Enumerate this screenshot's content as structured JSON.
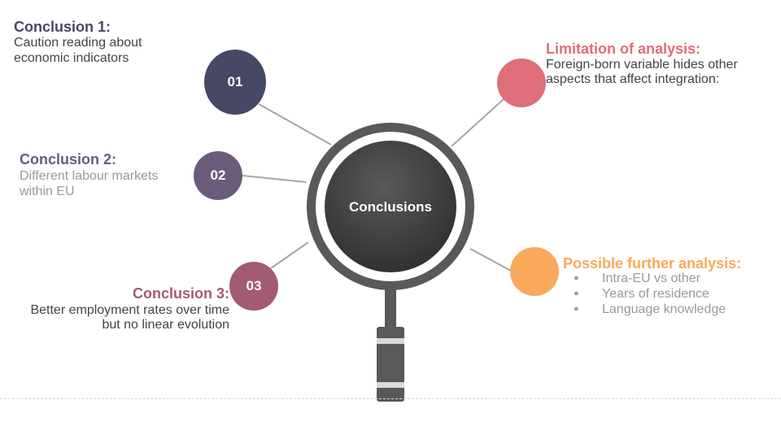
{
  "center": {
    "label": "Conclusions"
  },
  "conclusion_1": {
    "number": "01",
    "title": "Conclusion 1:",
    "body": [
      "Caution reading about",
      "economic indicators"
    ]
  },
  "conclusion_2": {
    "number": "02",
    "title": "Conclusion 2:",
    "body": [
      "Different labour markets",
      "within EU"
    ]
  },
  "conclusion_3": {
    "number": "03",
    "title": "Conclusion 3:",
    "body": [
      "Better employment rates over time",
      "but no linear evolution"
    ]
  },
  "limitation": {
    "title": "Limitation of analysis:",
    "body": [
      "Foreign-born variable hides other",
      "aspects that affect integration:"
    ]
  },
  "further_analysis": {
    "title": "Possible further analysis:",
    "items": [
      "Intra-EU vs other",
      "Years of residence",
      "Language knowledge"
    ]
  },
  "colors": {
    "conclusion_1": "#474766",
    "conclusion_2": "#6b5b7b",
    "conclusion_3": "#a25b72",
    "limitation": "#de6e7a",
    "further_analysis": "#fca95b",
    "magnifier": "#595959",
    "body_text": "#434343",
    "muted_text": "#999999"
  }
}
